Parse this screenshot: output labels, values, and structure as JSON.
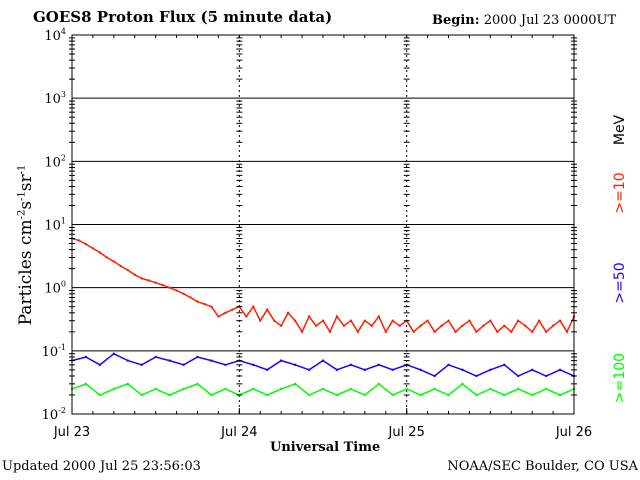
{
  "header": {
    "title": "GOES8 Proton Flux (5 minute data)",
    "begin_label": "Begin:",
    "begin_value": "2000 Jul 23 0000UT"
  },
  "footer": {
    "updated": "Updated 2000 Jul 25 23:56:03",
    "credit": "NOAA/SEC Boulder, CO USA"
  },
  "legend": {
    "unit": "MeV",
    "items": [
      {
        "label": ">=10",
        "color": "#ff2000"
      },
      {
        "label": ">=50",
        "color": "#2000ff"
      },
      {
        "label": ">=100",
        "color": "#00ff00"
      }
    ]
  },
  "chart_data": {
    "type": "line",
    "title": "GOES8 Proton Flux (5 minute data)",
    "xlabel": "Universal Time",
    "ylabel": "Particles cm-2s-1sr-1",
    "yscale": "log",
    "ylim": [
      0.01,
      10000
    ],
    "xlim": [
      0,
      72
    ],
    "x_unit": "hours since 2000 Jul 23 00UT",
    "xticks": [
      {
        "x": 0,
        "label": "Jul 23"
      },
      {
        "x": 24,
        "label": "Jul 24"
      },
      {
        "x": 48,
        "label": "Jul 25"
      },
      {
        "x": 72,
        "label": "Jul 26"
      }
    ],
    "yticks": [
      {
        "value": 0.01,
        "base": "10",
        "exp": "-2"
      },
      {
        "value": 0.1,
        "base": "10",
        "exp": "-1"
      },
      {
        "value": 1,
        "base": "10",
        "exp": "0"
      },
      {
        "value": 10,
        "base": "10",
        "exp": "1"
      },
      {
        "value": 100,
        "base": "10",
        "exp": "2"
      },
      {
        "value": 1000,
        "base": "10",
        "exp": "3"
      },
      {
        "value": 10000,
        "base": "10",
        "exp": "4"
      }
    ],
    "grid": true,
    "series": [
      {
        "name": ">=10 MeV",
        "color": "#ff2000",
        "x": [
          0,
          1,
          2,
          3,
          4,
          5,
          6,
          7,
          8,
          9,
          10,
          11,
          12,
          13,
          14,
          15,
          16,
          17,
          18,
          19,
          20,
          21,
          22,
          23,
          24,
          25,
          26,
          27,
          28,
          29,
          30,
          31,
          32,
          33,
          34,
          35,
          36,
          37,
          38,
          39,
          40,
          41,
          42,
          43,
          44,
          45,
          46,
          47,
          48,
          49,
          50,
          51,
          52,
          53,
          54,
          55,
          56,
          57,
          58,
          59,
          60,
          61,
          62,
          63,
          64,
          65,
          66,
          67,
          68,
          69,
          70,
          71,
          72
        ],
        "values": [
          6.0,
          5.6,
          4.9,
          4.2,
          3.6,
          3.0,
          2.6,
          2.2,
          1.9,
          1.6,
          1.4,
          1.3,
          1.2,
          1.1,
          1.0,
          0.9,
          0.8,
          0.7,
          0.6,
          0.55,
          0.5,
          0.35,
          0.4,
          0.45,
          0.5,
          0.35,
          0.5,
          0.3,
          0.45,
          0.3,
          0.25,
          0.4,
          0.3,
          0.2,
          0.35,
          0.25,
          0.3,
          0.2,
          0.35,
          0.25,
          0.3,
          0.2,
          0.3,
          0.25,
          0.35,
          0.2,
          0.3,
          0.25,
          0.3,
          0.2,
          0.25,
          0.3,
          0.2,
          0.25,
          0.3,
          0.2,
          0.25,
          0.3,
          0.2,
          0.25,
          0.3,
          0.2,
          0.25,
          0.2,
          0.3,
          0.25,
          0.2,
          0.3,
          0.2,
          0.25,
          0.3,
          0.2,
          0.35
        ]
      },
      {
        "name": ">=50 MeV",
        "color": "#2000ff",
        "x": [
          0,
          2,
          4,
          6,
          8,
          10,
          12,
          14,
          16,
          18,
          20,
          22,
          24,
          26,
          28,
          30,
          32,
          34,
          36,
          38,
          40,
          42,
          44,
          46,
          48,
          50,
          52,
          54,
          56,
          58,
          60,
          62,
          64,
          66,
          68,
          70,
          72
        ],
        "values": [
          0.07,
          0.08,
          0.06,
          0.09,
          0.07,
          0.06,
          0.08,
          0.07,
          0.06,
          0.08,
          0.07,
          0.06,
          0.07,
          0.06,
          0.05,
          0.07,
          0.06,
          0.05,
          0.07,
          0.05,
          0.06,
          0.05,
          0.06,
          0.05,
          0.06,
          0.05,
          0.04,
          0.06,
          0.05,
          0.04,
          0.05,
          0.06,
          0.04,
          0.05,
          0.04,
          0.05,
          0.04
        ]
      },
      {
        "name": ">=100 MeV",
        "color": "#00ff00",
        "x": [
          0,
          2,
          4,
          6,
          8,
          10,
          12,
          14,
          16,
          18,
          20,
          22,
          24,
          26,
          28,
          30,
          32,
          34,
          36,
          38,
          40,
          42,
          44,
          46,
          48,
          50,
          52,
          54,
          56,
          58,
          60,
          62,
          64,
          66,
          68,
          70,
          72
        ],
        "values": [
          0.025,
          0.03,
          0.02,
          0.025,
          0.03,
          0.02,
          0.025,
          0.02,
          0.025,
          0.03,
          0.02,
          0.025,
          0.02,
          0.025,
          0.02,
          0.025,
          0.03,
          0.02,
          0.025,
          0.02,
          0.025,
          0.02,
          0.03,
          0.02,
          0.025,
          0.02,
          0.025,
          0.02,
          0.03,
          0.02,
          0.025,
          0.02,
          0.025,
          0.02,
          0.025,
          0.02,
          0.025
        ]
      }
    ]
  }
}
